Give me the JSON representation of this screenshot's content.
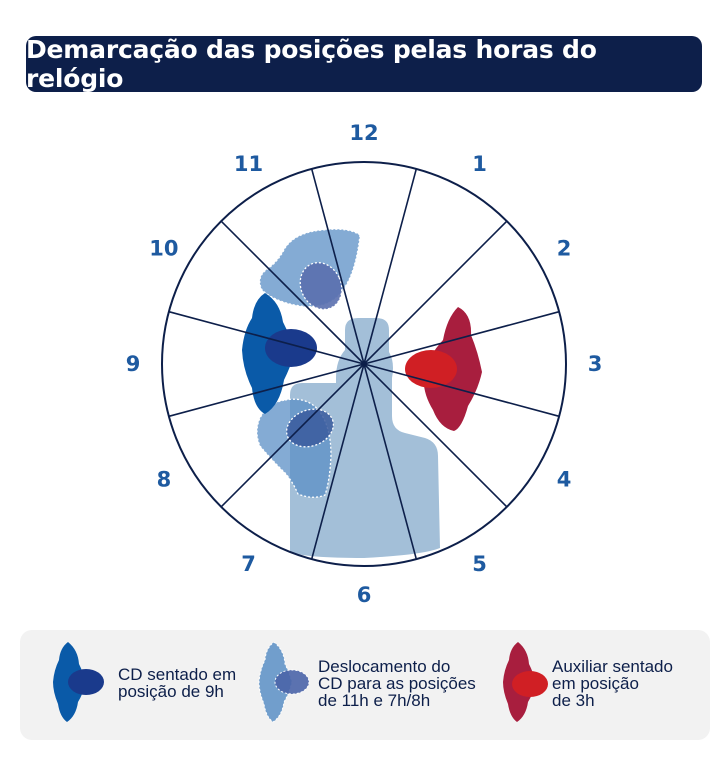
{
  "title": "Demarcação das posições pelas horas do relógio",
  "hours": [
    "12",
    "1",
    "2",
    "3",
    "4",
    "5",
    "6",
    "7",
    "8",
    "9",
    "10",
    "11"
  ],
  "legend": [
    {
      "text": "CD sentado em\nposição de 9h"
    },
    {
      "text": "Deslocamento do\nCD para as posições\nde 11h e 7h/8h"
    },
    {
      "text": "Auxiliar sentado\nem posição\nde 3h"
    }
  ],
  "colors": {
    "banner": "#0d1f4a",
    "dentist": "#0a5aa8",
    "dentist_head": "#1a3a8c",
    "displacement": "#5b8fc6",
    "assistant": "#a81e3e",
    "assistant_head": "#d01f24",
    "patient": "#a3bfd8",
    "lines": "#0d1f4a",
    "hour_label": "#1e5aa0"
  }
}
